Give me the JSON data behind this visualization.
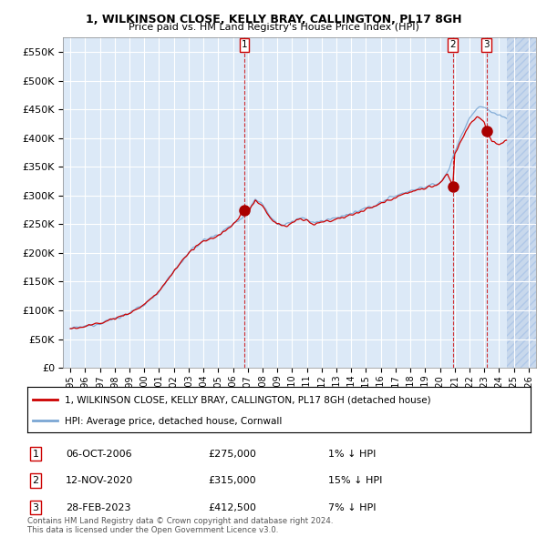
{
  "title": "1, WILKINSON CLOSE, KELLY BRAY, CALLINGTON, PL17 8GH",
  "subtitle": "Price paid vs. HM Land Registry's House Price Index (HPI)",
  "legend_line1": "1, WILKINSON CLOSE, KELLY BRAY, CALLINGTON, PL17 8GH (detached house)",
  "legend_line2": "HPI: Average price, detached house, Cornwall",
  "footer": "Contains HM Land Registry data © Crown copyright and database right 2024.\nThis data is licensed under the Open Government Licence v3.0.",
  "transactions": [
    {
      "num": 1,
      "date": "06-OCT-2006",
      "price": "£275,000",
      "hpi": "1% ↓ HPI",
      "year": 2006.77
    },
    {
      "num": 2,
      "date": "12-NOV-2020",
      "price": "£315,000",
      "hpi": "15% ↓ HPI",
      "year": 2020.87
    },
    {
      "num": 3,
      "date": "28-FEB-2023",
      "price": "£412,500",
      "hpi": "7% ↓ HPI",
      "year": 2023.16
    }
  ],
  "transaction_prices": [
    275000,
    315000,
    412500
  ],
  "hpi_color": "#7ba7d4",
  "price_color": "#cc0000",
  "dashed_color": "#cc0000",
  "plot_bg": "#dce9f7",
  "grid_color": "#ffffff",
  "hatch_color": "#c8d8ec",
  "ylim": [
    0,
    575000
  ],
  "xlim_start": 1994.5,
  "xlim_end": 2026.5,
  "data_end": 2024.5,
  "yticks": [
    0,
    50000,
    100000,
    150000,
    200000,
    250000,
    300000,
    350000,
    400000,
    450000,
    500000,
    550000
  ],
  "xtick_years": [
    1995,
    1996,
    1997,
    1998,
    1999,
    2000,
    2001,
    2002,
    2003,
    2004,
    2005,
    2006,
    2007,
    2008,
    2009,
    2010,
    2011,
    2012,
    2013,
    2014,
    2015,
    2016,
    2017,
    2018,
    2019,
    2020,
    2021,
    2022,
    2023,
    2024,
    2025,
    2026
  ]
}
